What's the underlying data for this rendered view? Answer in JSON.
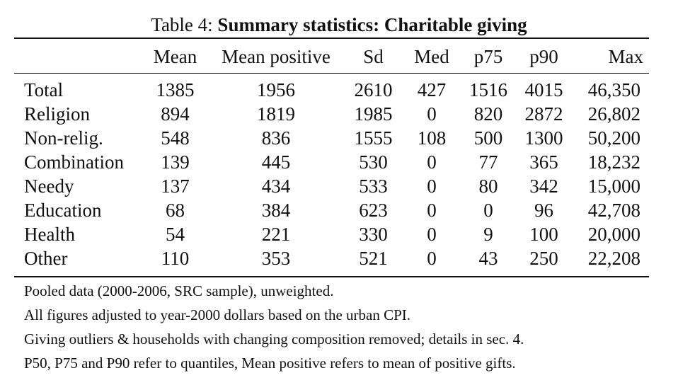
{
  "caption": {
    "prefix": "Table 4: ",
    "title": "Summary statistics: Charitable giving"
  },
  "columns": [
    "",
    "Mean",
    "Mean positive",
    "Sd",
    "Med",
    "p75",
    "p90",
    "Max"
  ],
  "rows": [
    [
      "Total",
      "1385",
      "1956",
      "2610",
      "427",
      "1516",
      "4015",
      "46,350"
    ],
    [
      "Religion",
      "894",
      "1819",
      "1985",
      "0",
      "820",
      "2872",
      "26,802"
    ],
    [
      "Non-relig.",
      "548",
      "836",
      "1555",
      "108",
      "500",
      "1300",
      "50,200"
    ],
    [
      "Combination",
      "139",
      "445",
      "530",
      "0",
      "77",
      "365",
      "18,232"
    ],
    [
      "Needy",
      "137",
      "434",
      "533",
      "0",
      "80",
      "342",
      "15,000"
    ],
    [
      "Education",
      "68",
      "384",
      "623",
      "0",
      "0",
      "96",
      "42,708"
    ],
    [
      "Health",
      "54",
      "221",
      "330",
      "0",
      "9",
      "100",
      "20,000"
    ],
    [
      "Other",
      "110",
      "353",
      "521",
      "0",
      "43",
      "250",
      "22,208"
    ]
  ],
  "notes": [
    "Pooled data (2000-2006, SRC sample), unweighted.",
    "All figures adjusted to year-2000 dollars based on the urban CPI.",
    "Giving outliers & households with changing composition removed; details in sec. 4.",
    "P50, P75 and P90 refer to quantiles, Mean positive refers to mean of positive gifts."
  ]
}
